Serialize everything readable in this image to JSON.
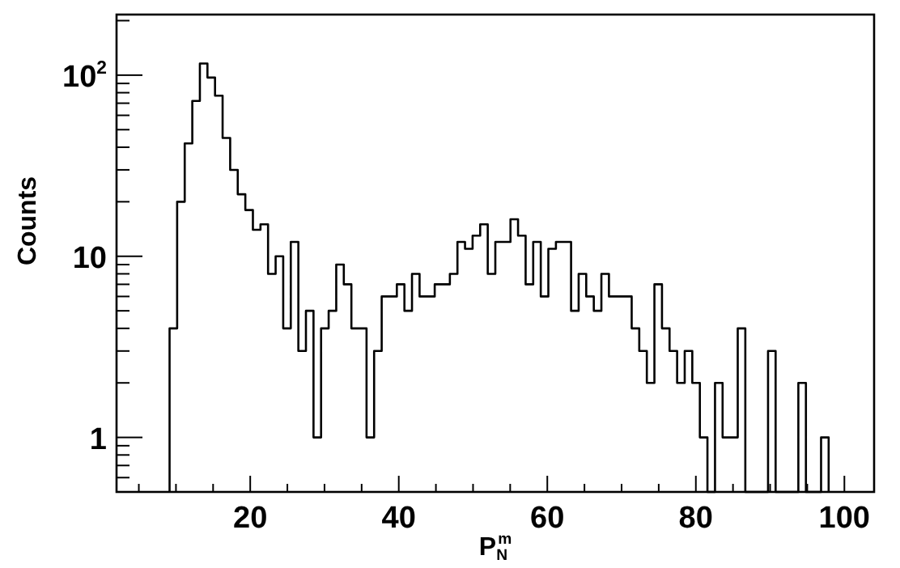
{
  "chart_data": {
    "type": "histogram",
    "xlabel": "P$_{N}$$^{m}$",
    "ylabel": "Counts",
    "color": "#000000",
    "log": "y",
    "grid": false,
    "bins": [
      9.14,
      10.16,
      11.18,
      12.2,
      13.22,
      14.24,
      15.26,
      16.28,
      17.3,
      18.32,
      19.34,
      20.36,
      21.38,
      22.4,
      23.42,
      24.44,
      25.46,
      26.48,
      27.5,
      28.52,
      29.54,
      30.56,
      31.58,
      32.6,
      33.62,
      34.64,
      35.66,
      36.68,
      37.7,
      38.72,
      39.74,
      40.76,
      41.78,
      42.8,
      43.82,
      44.84,
      45.86,
      46.88,
      47.9,
      48.92,
      49.94,
      50.96,
      51.98,
      53,
      54.02,
      55.04,
      56.06,
      57.08,
      58.1,
      59.12,
      60.14,
      61.16,
      62.18,
      63.2,
      64.22,
      65.24,
      66.26,
      67.28,
      68.3,
      69.32,
      70.34,
      71.36,
      72.38,
      73.4,
      74.42,
      75.44,
      76.46,
      77.48,
      78.5,
      79.52,
      80.54,
      81.56,
      82.58,
      83.6,
      84.62,
      85.64,
      86.66,
      87.68,
      88.7,
      89.72,
      90.74,
      91.76,
      92.78,
      93.8,
      94.82,
      95.84,
      96.86,
      97.88
    ],
    "values": [
      4,
      20,
      42,
      72,
      116,
      97,
      77,
      45,
      30,
      22,
      18,
      14,
      15,
      8,
      10,
      4,
      12,
      3,
      5,
      1,
      4,
      5,
      9,
      7,
      4,
      4,
      1,
      3,
      6,
      6,
      7,
      5,
      8,
      6,
      6,
      7,
      7,
      8,
      12,
      11,
      13,
      15,
      8,
      12,
      12,
      16,
      13,
      7,
      12,
      6,
      11,
      12,
      12,
      5,
      8,
      6,
      5,
      8,
      6,
      6,
      6,
      4,
      3,
      2,
      7,
      4,
      3,
      2,
      3,
      2,
      1,
      null,
      2,
      1,
      1,
      4,
      null,
      null,
      null,
      3,
      null,
      null,
      null,
      2,
      null,
      null,
      1
    ],
    "xlim": [
      2,
      104
    ],
    "xticks": [
      {
        "value": 5,
        "label": null
      },
      {
        "value": 10,
        "label": null
      },
      {
        "value": 15,
        "label": null
      },
      20,
      {
        "value": 25,
        "label": null
      },
      {
        "value": 30,
        "label": null
      },
      {
        "value": 35,
        "label": null
      },
      40,
      {
        "value": 45,
        "label": null
      },
      {
        "value": 50,
        "label": null
      },
      {
        "value": 55,
        "label": null
      },
      60,
      {
        "value": 65,
        "label": null
      },
      {
        "value": 70,
        "label": null
      },
      {
        "value": 75,
        "label": null
      },
      80,
      {
        "value": 85,
        "label": null
      },
      {
        "value": 90,
        "label": null
      },
      {
        "value": 95,
        "label": null
      },
      100
    ],
    "ylim": [
      0.5,
      216
    ],
    "yticks": [
      {
        "value": 0.6,
        "label": null
      },
      {
        "value": 0.7,
        "label": null
      },
      {
        "value": 0.8,
        "label": null
      },
      {
        "value": 0.9,
        "label": null
      },
      1,
      {
        "value": 2,
        "label": null
      },
      {
        "value": 3,
        "label": null
      },
      {
        "value": 4,
        "label": null
      },
      {
        "value": 5,
        "label": null
      },
      {
        "value": 6,
        "label": null
      },
      {
        "value": 7,
        "label": null
      },
      {
        "value": 8,
        "label": null
      },
      {
        "value": 9,
        "label": null
      },
      10,
      {
        "value": 20,
        "label": null
      },
      {
        "value": 30,
        "label": null
      },
      {
        "value": 40,
        "label": null
      },
      {
        "value": 50,
        "label": null
      },
      {
        "value": 60,
        "label": null
      },
      {
        "value": 70,
        "label": null
      },
      {
        "value": 80,
        "label": null
      },
      {
        "value": 90,
        "label": null
      },
      {
        "value": 100,
        "label": "10$^{2}$"
      },
      {
        "value": 200,
        "label": null
      }
    ]
  }
}
